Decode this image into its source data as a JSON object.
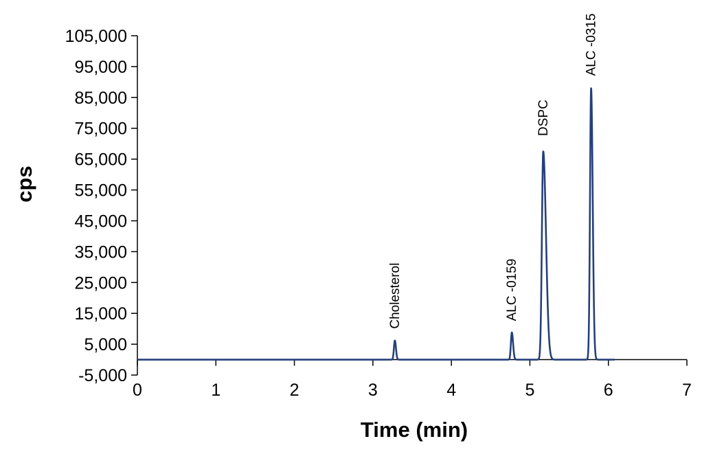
{
  "chart_data": {
    "type": "line",
    "title": "",
    "xlabel": "Time (min)",
    "ylabel": "cps",
    "xlim": [
      0,
      7
    ],
    "ylim": [
      -5000,
      105000
    ],
    "x_ticks": [
      0,
      1,
      2,
      3,
      4,
      5,
      6,
      7
    ],
    "x_tick_labels": [
      "0",
      "1",
      "2",
      "3",
      "4",
      "5",
      "6",
      "7"
    ],
    "y_ticks": [
      -5000,
      5000,
      15000,
      25000,
      35000,
      45000,
      55000,
      65000,
      75000,
      85000,
      95000,
      105000
    ],
    "y_tick_labels": [
      "-5,000",
      "5,000",
      "15,000",
      "25,000",
      "35,000",
      "45,000",
      "55,000",
      "65,000",
      "75,000",
      "85,000",
      "95,000",
      "105,000"
    ],
    "grid": false,
    "legend": "none",
    "baseline": 0,
    "x_end": 6.08,
    "color": "#253f7a",
    "peaks": [
      {
        "label": "Cholesterol",
        "rt": 3.28,
        "height": 6200,
        "sigma_left": 0.012,
        "sigma_right": 0.014,
        "label_y": 10000
      },
      {
        "label": "ALC -0159",
        "rt": 4.77,
        "height": 8800,
        "sigma_left": 0.012,
        "sigma_right": 0.016,
        "label_y": 12500
      },
      {
        "label": "DSPC",
        "rt": 5.17,
        "height": 67500,
        "sigma_left": 0.017,
        "sigma_right": 0.035,
        "label_y": 72500
      },
      {
        "label": "ALC -0315",
        "rt": 5.78,
        "height": 88000,
        "sigma_left": 0.014,
        "sigma_right": 0.02,
        "label_y": 92000
      }
    ]
  }
}
